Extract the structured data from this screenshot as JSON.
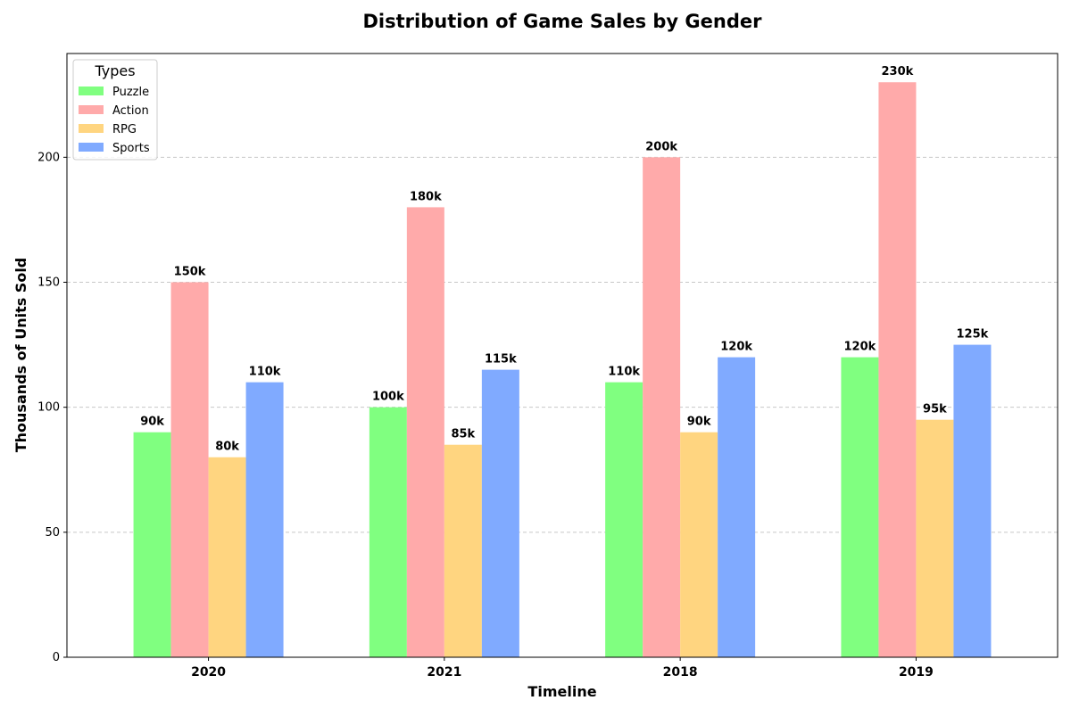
{
  "chart_data": {
    "type": "bar",
    "title": "Distribution of Game Sales by Gender",
    "xlabel": "Timeline",
    "ylabel": "Thousands of Units Sold",
    "categories": [
      "2020",
      "2021",
      "2018",
      "2019"
    ],
    "series": [
      {
        "name": "Puzzle",
        "color": "#80ff80",
        "values": [
          90,
          100,
          110,
          120
        ],
        "labels": [
          "90k",
          "100k",
          "110k",
          "120k"
        ]
      },
      {
        "name": "Action",
        "color": "#ffaaaa",
        "values": [
          150,
          180,
          200,
          230
        ],
        "labels": [
          "150k",
          "180k",
          "200k",
          "230k"
        ]
      },
      {
        "name": "RPG",
        "color": "#ffd580",
        "values": [
          80,
          85,
          90,
          95
        ],
        "labels": [
          "80k",
          "85k",
          "90k",
          "95k"
        ]
      },
      {
        "name": "Sports",
        "color": "#80aaff",
        "values": [
          110,
          115,
          120,
          125
        ],
        "labels": [
          "110k",
          "115k",
          "120k",
          "125k"
        ]
      }
    ],
    "ylim": [
      0,
      241.5
    ],
    "yticks": [
      0,
      50,
      100,
      150,
      200
    ],
    "ytick_labels": [
      "0",
      "50",
      "100",
      "150",
      "200"
    ],
    "grid": "y-dashed",
    "legend": {
      "title": "Types",
      "placement": "top-left"
    }
  }
}
